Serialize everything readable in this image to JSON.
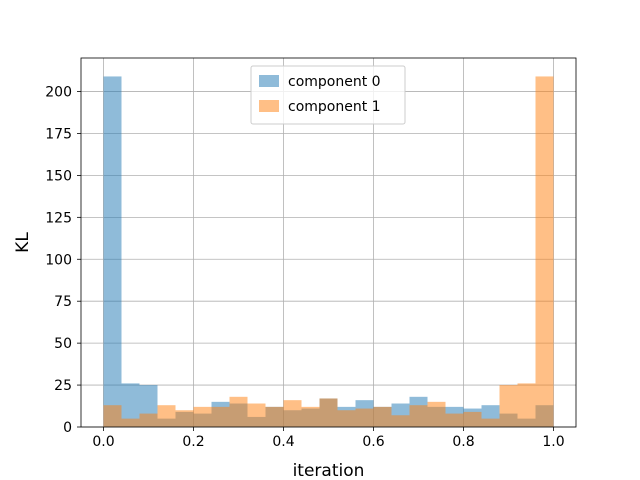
{
  "chart_data": {
    "type": "bar",
    "subtype": "overlapping-histogram",
    "title": "",
    "xlabel": "iteration",
    "ylabel": "KL",
    "xlim": [
      -0.05,
      1.05
    ],
    "ylim": [
      0,
      220
    ],
    "xticks": [
      0.0,
      0.2,
      0.4,
      0.6,
      0.8,
      1.0
    ],
    "xtick_labels": [
      "0.0",
      "0.2",
      "0.4",
      "0.6",
      "0.8",
      "1.0"
    ],
    "yticks": [
      0,
      25,
      50,
      75,
      100,
      125,
      150,
      175,
      200
    ],
    "ytick_labels": [
      "0",
      "25",
      "50",
      "75",
      "100",
      "125",
      "150",
      "175",
      "200"
    ],
    "grid": true,
    "legend_position": "top-center",
    "bin_edges": [
      0.0,
      0.04,
      0.08,
      0.12,
      0.16,
      0.2,
      0.24,
      0.28,
      0.32,
      0.36,
      0.4,
      0.44,
      0.48,
      0.52,
      0.56,
      0.6,
      0.64,
      0.68,
      0.72,
      0.76,
      0.8,
      0.84,
      0.88,
      0.92,
      0.96,
      1.0
    ],
    "series": [
      {
        "name": "component 0",
        "color": "#1f77b4",
        "values": [
          209,
          26,
          25,
          5,
          9,
          8,
          15,
          14,
          6,
          12,
          10,
          11,
          17,
          12,
          16,
          12,
          14,
          18,
          12,
          12,
          11,
          13,
          8,
          5,
          13
        ]
      },
      {
        "name": "component 1",
        "color": "#ff7f0e",
        "values": [
          13,
          5,
          8,
          13,
          10,
          12,
          12,
          18,
          14,
          12,
          16,
          12,
          17,
          10,
          11,
          12,
          7,
          13,
          15,
          8,
          9,
          5,
          25,
          26,
          209
        ]
      }
    ],
    "opacity": 0.5
  }
}
